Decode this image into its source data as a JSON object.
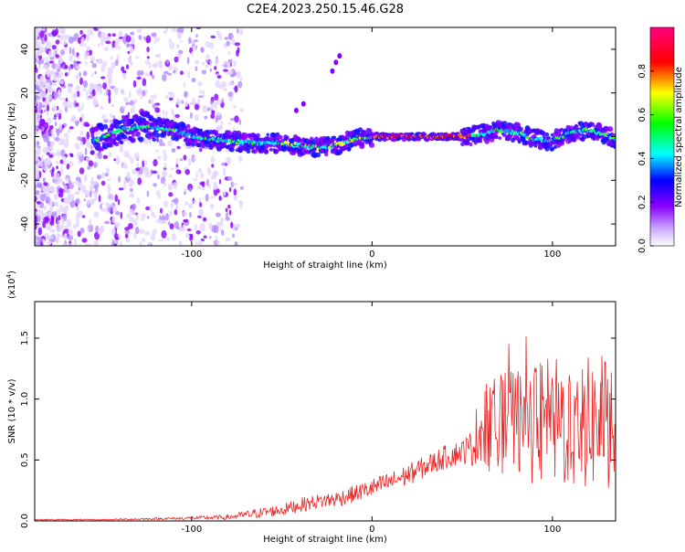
{
  "title": "C2E4.2023.250.15.46.G28",
  "chart_data": [
    {
      "type": "heatmap",
      "xlabel": "Height of straight line (km)",
      "ylabel": "Frequency (Hz)",
      "xlim": [
        -187,
        135
      ],
      "ylim": [
        -50,
        50
      ],
      "xticks": [
        -100,
        0,
        100
      ],
      "yticks": [
        -40,
        -20,
        0,
        20,
        40
      ],
      "colorbar": {
        "label": "Normalized spectral amplitude",
        "range": [
          0,
          1
        ],
        "ticks": [
          "0.0",
          "0.2",
          "0.4",
          "0.6",
          "0.8"
        ],
        "colors": [
          "#ffffff",
          "#8a00ff",
          "#0000ff",
          "#00ffff",
          "#00ff00",
          "#ffff00",
          "#ff0000",
          "#ff0080"
        ]
      },
      "ridge": {
        "x": [
          -155,
          -140,
          -125,
          -110,
          -95,
          -80,
          -65,
          -50,
          -40,
          -30,
          -20,
          -10,
          0,
          10,
          20,
          30,
          40,
          50,
          60,
          70,
          80,
          90,
          100,
          110,
          120,
          130,
          135
        ],
        "y": [
          -2,
          3,
          5,
          3,
          -1,
          -2,
          -3,
          -3,
          -4,
          -5,
          -4,
          -1,
          0,
          0,
          0,
          0,
          0,
          0,
          1,
          3,
          2,
          -1,
          -2,
          2,
          3,
          1,
          -1
        ]
      }
    },
    {
      "type": "line",
      "xlabel": "Height of straight line (km)",
      "ylabel": "SNR (10 * v/v)",
      "yscale_note": "(x10",
      "yscale_exp": "4",
      "ylabel_unit": ")",
      "xlim": [
        -187,
        135
      ],
      "ylim": [
        0,
        1.8
      ],
      "xticks": [
        -100,
        0,
        100
      ],
      "yticks": [
        "0.0",
        "0.5",
        "1.0",
        "1.5"
      ],
      "ytick_values": [
        0,
        0.5,
        1.0,
        1.5
      ],
      "series": [
        {
          "color": "#ee2222",
          "envelope": {
            "x": [
              -187,
              -150,
              -110,
              -80,
              -65,
              -50,
              -40,
              -30,
              -20,
              -10,
              0,
              10,
              20,
              30,
              40,
              50,
              55,
              60,
              70,
              80,
              90,
              100,
              110,
              120,
              130,
              135
            ],
            "mid": [
              0.01,
              0.01,
              0.02,
              0.03,
              0.06,
              0.09,
              0.13,
              0.16,
              0.18,
              0.22,
              0.27,
              0.32,
              0.38,
              0.45,
              0.52,
              0.57,
              0.6,
              0.75,
              0.8,
              0.8,
              0.8,
              0.8,
              0.8,
              0.8,
              0.8,
              0.8
            ],
            "amp": [
              0.005,
              0.005,
              0.01,
              0.02,
              0.04,
              0.05,
              0.06,
              0.06,
              0.07,
              0.07,
              0.08,
              0.08,
              0.09,
              0.09,
              0.1,
              0.1,
              0.15,
              0.35,
              0.4,
              0.45,
              0.5,
              0.55,
              0.55,
              0.55,
              0.55,
              0.55
            ]
          }
        }
      ]
    }
  ]
}
